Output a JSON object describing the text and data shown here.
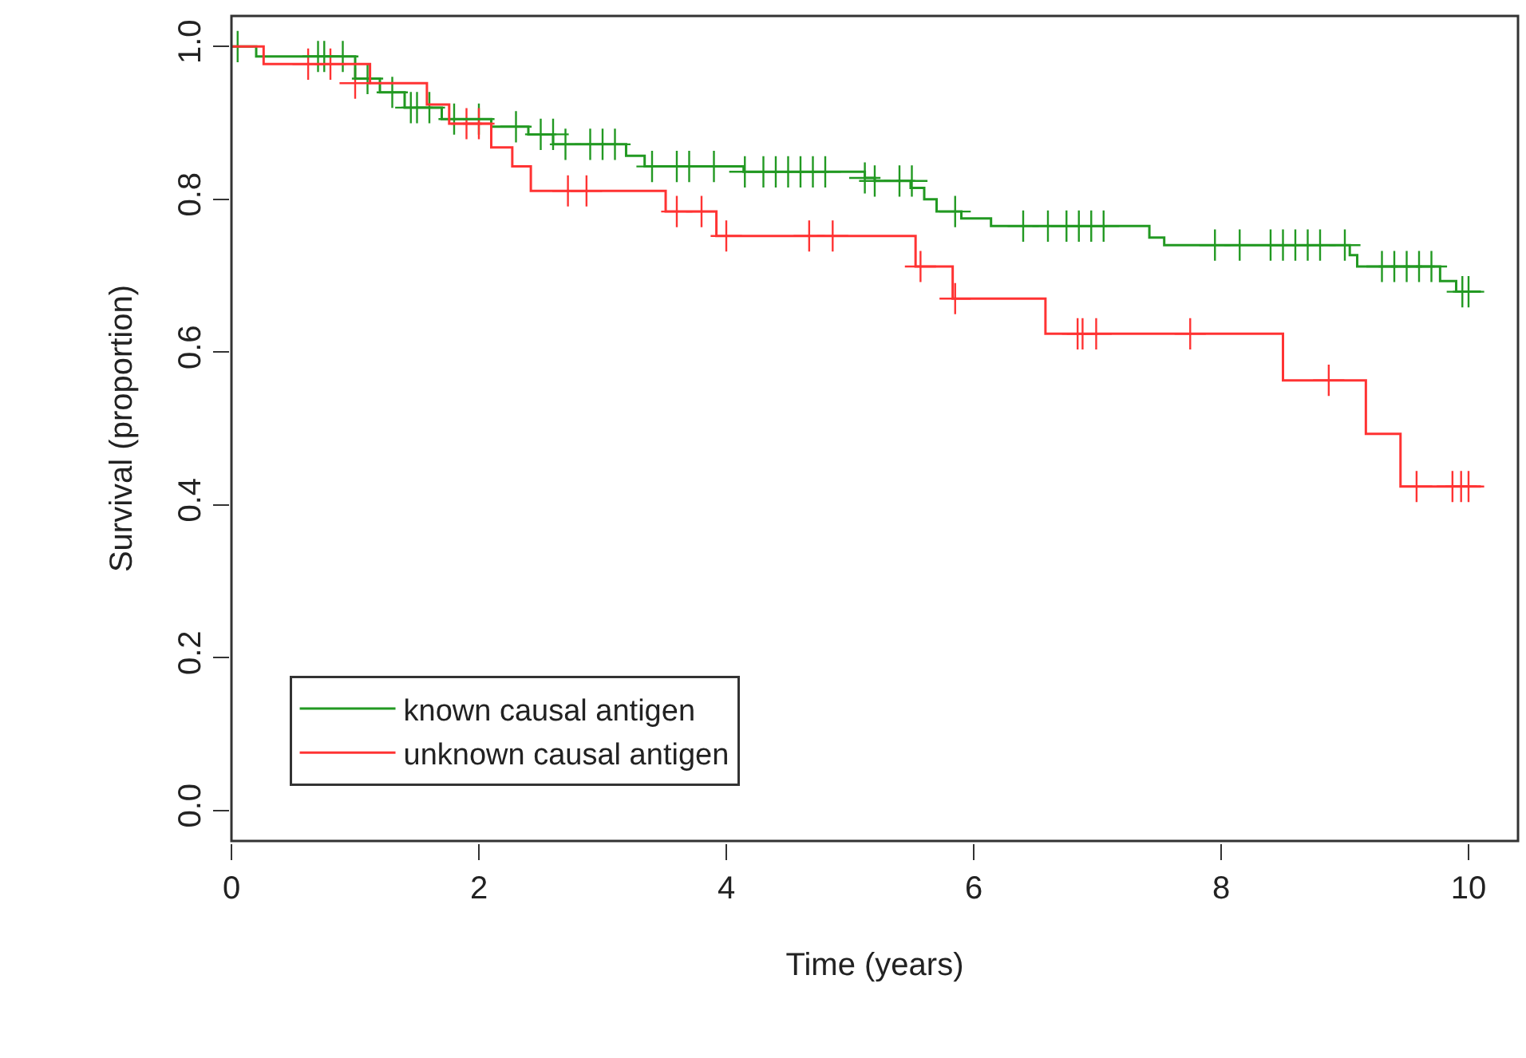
{
  "chart_data": {
    "type": "step",
    "xlabel": "Time (years)",
    "ylabel": "Survival (proportion)",
    "xlim": [
      0,
      10.4
    ],
    "ylim": [
      -0.04,
      1.04
    ],
    "xticks": [
      0,
      2,
      4,
      6,
      8,
      10
    ],
    "yticks": [
      {
        "value": 0,
        "label": "0.0"
      },
      0.2,
      0.4,
      0.6,
      0.8,
      {
        "value": 1,
        "label": "1.0"
      }
    ],
    "legend": "bottom left",
    "marker": "none",
    "line_style": "solid",
    "series": [
      {
        "name": "known causal antigen",
        "color": "#229922",
        "x": [
          0,
          0.2,
          1.0,
          1.2,
          1.4,
          1.7,
          2.1,
          2.4,
          2.6,
          3.19,
          3.34,
          4.14,
          5.12,
          5.2,
          5.49,
          5.6,
          5.7,
          5.78,
          5.9,
          6.14,
          7.42,
          7.54,
          9.04,
          9.1,
          9.77,
          9.9,
          10.1
        ],
        "values": [
          1.0,
          0.987,
          0.958,
          0.94,
          0.92,
          0.905,
          0.895,
          0.885,
          0.872,
          0.857,
          0.843,
          0.836,
          0.828,
          0.824,
          0.815,
          0.8,
          0.784,
          0.784,
          0.775,
          0.765,
          0.75,
          0.74,
          0.727,
          0.712,
          0.693,
          0.679,
          0.679
        ]
      },
      {
        "name": "unknown causal antigen",
        "color": "#ff3333",
        "x": [
          0,
          0.26,
          1.12,
          1.58,
          1.76,
          2.1,
          2.27,
          2.42,
          3.51,
          3.92,
          5.53,
          5.83,
          6.58,
          8.5,
          9.17,
          9.45,
          10.1
        ],
        "values": [
          1.0,
          0.977,
          0.952,
          0.924,
          0.899,
          0.868,
          0.843,
          0.811,
          0.784,
          0.752,
          0.712,
          0.67,
          0.624,
          0.563,
          0.493,
          0.424,
          0.424
        ]
      },
      {
        "type": "scatter",
        "marker": "cross",
        "color": "#229922",
        "x": [
          0.05,
          0.7,
          0.75,
          0.9,
          1.1,
          1.3,
          1.45,
          1.5,
          1.6,
          1.8,
          2.0,
          2.3,
          2.5,
          2.6,
          2.7,
          2.9,
          3.0,
          3.1,
          3.4,
          3.6,
          3.7,
          3.9,
          4.15,
          4.3,
          4.4,
          4.5,
          4.6,
          4.7,
          4.8,
          5.12,
          5.2,
          5.4,
          5.5,
          5.85,
          6.4,
          6.6,
          6.75,
          6.85,
          6.95,
          7.05,
          7.95,
          8.15,
          8.4,
          8.5,
          8.6,
          8.7,
          8.8,
          9.0,
          9.3,
          9.4,
          9.5,
          9.6,
          9.7,
          9.95,
          10.0
        ],
        "values": [
          1.0,
          0.987,
          0.987,
          0.987,
          0.958,
          0.94,
          0.92,
          0.92,
          0.92,
          0.905,
          0.905,
          0.895,
          0.885,
          0.885,
          0.872,
          0.872,
          0.872,
          0.872,
          0.843,
          0.843,
          0.843,
          0.843,
          0.836,
          0.836,
          0.836,
          0.836,
          0.836,
          0.836,
          0.836,
          0.828,
          0.824,
          0.824,
          0.824,
          0.784,
          0.765,
          0.765,
          0.765,
          0.765,
          0.765,
          0.765,
          0.74,
          0.74,
          0.74,
          0.74,
          0.74,
          0.74,
          0.74,
          0.74,
          0.712,
          0.712,
          0.712,
          0.712,
          0.712,
          0.679,
          0.679
        ]
      },
      {
        "type": "scatter",
        "marker": "cross",
        "color": "#ff3333",
        "x": [
          0.62,
          0.8,
          1.0,
          1.9,
          2.0,
          2.72,
          2.87,
          3.6,
          3.8,
          4.0,
          4.67,
          4.86,
          5.57,
          5.85,
          6.84,
          6.88,
          6.99,
          7.75,
          8.87,
          9.58,
          9.87,
          9.94,
          10.0
        ],
        "values": [
          0.977,
          0.977,
          0.952,
          0.899,
          0.899,
          0.811,
          0.811,
          0.784,
          0.784,
          0.752,
          0.752,
          0.752,
          0.712,
          0.67,
          0.624,
          0.624,
          0.624,
          0.624,
          0.563,
          0.424,
          0.424,
          0.424,
          0.424
        ]
      }
    ]
  }
}
